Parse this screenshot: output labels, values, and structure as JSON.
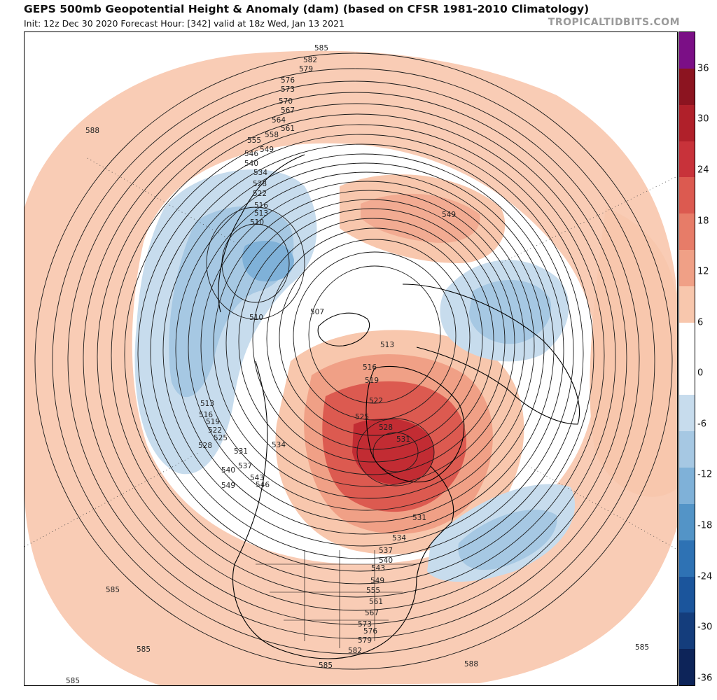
{
  "header": {
    "title": "GEPS 500mb Geopotential Height & Anomaly (dam) (based on CFSR 1981-2010 Climatology)",
    "subtitle": "Init: 12z Dec 30 2020   Forecast Hour: [342]   valid at 18z Wed, Jan 13 2021",
    "brand": "TROPICALTIDBITS.COM"
  },
  "colorbar": {
    "units": "dam",
    "bins": [
      {
        "color": "#7b0f86"
      },
      {
        "color": "#8c1420"
      },
      {
        "color": "#b0202a"
      },
      {
        "color": "#c8323a"
      },
      {
        "color": "#dc5a50"
      },
      {
        "color": "#e77c68"
      },
      {
        "color": "#f0a086"
      },
      {
        "color": "#f8c7ad"
      },
      {
        "color": "#ffffff"
      },
      {
        "color": "#ffffff"
      },
      {
        "color": "#c7dced"
      },
      {
        "color": "#a6c8e3"
      },
      {
        "color": "#7fb1d8"
      },
      {
        "color": "#5394c7"
      },
      {
        "color": "#2e72b4"
      },
      {
        "color": "#1b559c"
      },
      {
        "color": "#143d7c"
      },
      {
        "color": "#0d2459"
      }
    ],
    "tick_labels": [
      "36",
      "30",
      "24",
      "18",
      "12",
      "6",
      "0",
      "-6",
      "-12",
      "-18",
      "-24",
      "-30",
      "-36"
    ]
  },
  "contour_labels": [
    "585",
    "582",
    "579",
    "576",
    "573",
    "570",
    "567",
    "564",
    "561",
    "558",
    "555",
    "549",
    "546",
    "540",
    "534",
    "528",
    "522",
    "516",
    "513",
    "510",
    "510",
    "507",
    "549",
    "513",
    "516",
    "519",
    "522",
    "525",
    "528",
    "531",
    "513",
    "516",
    "519",
    "522",
    "525",
    "528",
    "531",
    "534",
    "537",
    "540",
    "543",
    "546",
    "549",
    "531",
    "534",
    "537",
    "540",
    "543",
    "549",
    "555",
    "561",
    "567",
    "573",
    "576",
    "579",
    "582",
    "585",
    "585",
    "585",
    "585",
    "588",
    "588",
    "585"
  ],
  "anomaly_colors": {
    "positive_light": "#f8c7ad",
    "positive_mid": "#f0a086",
    "positive_strong": "#dc5a50",
    "positive_max": "#c22c33",
    "negative_light": "#c7dced",
    "negative_mid": "#a6c8e3",
    "negative_strong": "#7fb1d8"
  }
}
